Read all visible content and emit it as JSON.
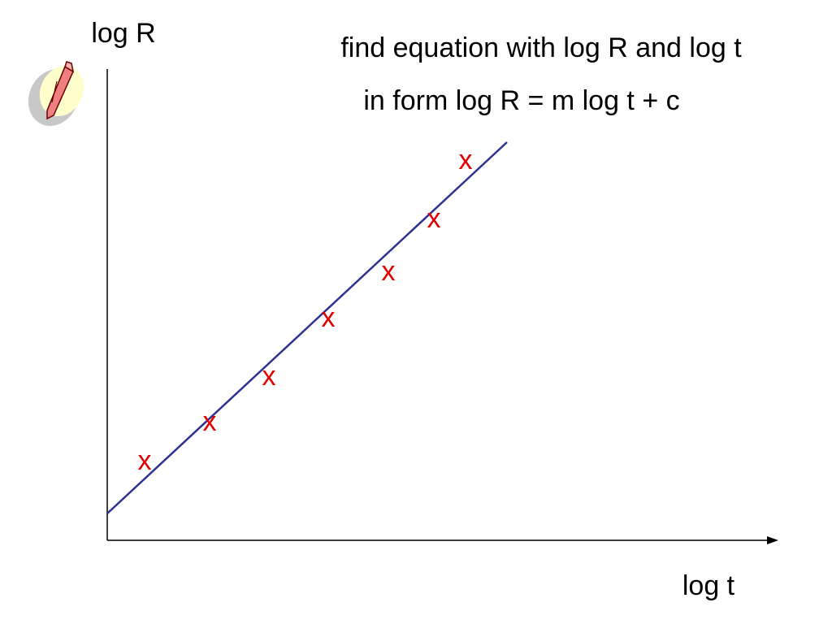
{
  "axes": {
    "y_label": "log  R",
    "x_label": "log t"
  },
  "instructions": {
    "line1": "find equation with log R and log t",
    "line2": "in form log R = m log t + c"
  },
  "points": [
    "x",
    "x",
    "x",
    "x",
    "x",
    "x",
    "x"
  ]
}
